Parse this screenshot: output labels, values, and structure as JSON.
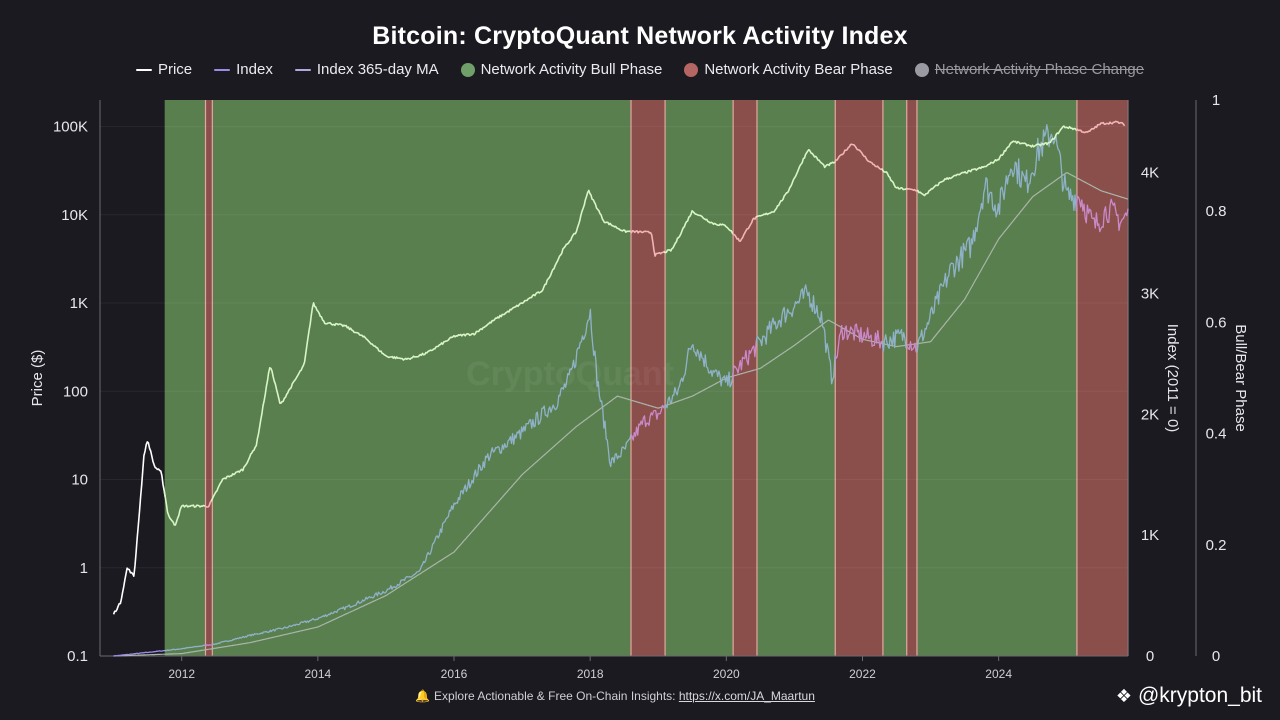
{
  "title": "Bitcoin: CryptoQuant Network Activity Index",
  "legend": [
    {
      "label": "Price",
      "kind": "line",
      "color": "#ffffff",
      "disabled": false
    },
    {
      "label": "Index",
      "kind": "line",
      "color": "#9b8ce8",
      "disabled": false
    },
    {
      "label": "Index 365-day MA",
      "kind": "line",
      "color": "#b4a6e0",
      "disabled": false
    },
    {
      "label": "Network Activity Bull Phase",
      "kind": "dot",
      "color": "#6fa06a",
      "disabled": false
    },
    {
      "label": "Network Activity Bear Phase",
      "kind": "dot",
      "color": "#b56562",
      "disabled": false
    },
    {
      "label": "Network Activity Phase Change",
      "kind": "dot",
      "color": "#9a9aa2",
      "disabled": true
    }
  ],
  "footer": {
    "icon": "bell-icon",
    "text": "Explore Actionable & Free On-Chain Insights: ",
    "link": "https://x.com/JA_Maartun"
  },
  "watermark": {
    "icon": "binance-logo-icon",
    "handle": "@krypton_bit"
  },
  "colors": {
    "background": "#1b1a20",
    "bull": "#5a7f4f",
    "bear": "#8a4e4b",
    "bear_edge": "#e6a5a0",
    "index_bull": "#8fb2c9",
    "index_bear": "#c98ac9",
    "price_bull": "#d8f5c4",
    "price_bear": "#f2b4b4",
    "ma": "#a9b6aa"
  },
  "chart_data": {
    "type": "line",
    "x_ticks": [
      "2012",
      "2014",
      "2016",
      "2018",
      "2020",
      "2022",
      "2024"
    ],
    "x_range": [
      2010.8,
      2025.9
    ],
    "phase_data_start": 2011.75,
    "left_axis": {
      "label": "Price ($)",
      "scale": "log",
      "ticks": [
        "0.1",
        "1",
        "10",
        "100",
        "1K",
        "10K",
        "100K"
      ],
      "range": [
        0.1,
        200000
      ]
    },
    "right_axis_1": {
      "label": "Index (2011 = 0)",
      "ticks": [
        "0",
        "1K",
        "2K",
        "3K",
        "4K"
      ],
      "range": [
        0,
        4600
      ]
    },
    "right_axis_2": {
      "label": "Bull/Bear Phase",
      "ticks": [
        "0",
        "0.2",
        "0.4",
        "0.6",
        "0.8",
        "1"
      ],
      "range": [
        0,
        1
      ]
    },
    "bear_phases": [
      [
        2012.35,
        2012.45
      ],
      [
        2018.6,
        2019.1
      ],
      [
        2020.1,
        2020.45
      ],
      [
        2021.6,
        2022.3
      ],
      [
        2022.65,
        2022.8
      ],
      [
        2025.15,
        2025.9
      ]
    ],
    "series": [
      {
        "name": "Price",
        "points": [
          [
            2011.0,
            0.3
          ],
          [
            2011.1,
            0.4
          ],
          [
            2011.2,
            1.0
          ],
          [
            2011.3,
            0.8
          ],
          [
            2011.45,
            20
          ],
          [
            2011.5,
            28
          ],
          [
            2011.6,
            14
          ],
          [
            2011.7,
            12
          ],
          [
            2011.8,
            4
          ],
          [
            2011.9,
            3
          ],
          [
            2012.0,
            5
          ],
          [
            2012.2,
            5
          ],
          [
            2012.4,
            5
          ],
          [
            2012.6,
            10
          ],
          [
            2012.9,
            13
          ],
          [
            2013.1,
            25
          ],
          [
            2013.3,
            200
          ],
          [
            2013.45,
            70
          ],
          [
            2013.6,
            110
          ],
          [
            2013.8,
            200
          ],
          [
            2013.93,
            1000
          ],
          [
            2014.1,
            600
          ],
          [
            2014.4,
            550
          ],
          [
            2014.7,
            400
          ],
          [
            2015.0,
            250
          ],
          [
            2015.3,
            230
          ],
          [
            2015.6,
            270
          ],
          [
            2016.0,
            420
          ],
          [
            2016.3,
            450
          ],
          [
            2016.6,
            650
          ],
          [
            2017.0,
            1000
          ],
          [
            2017.3,
            1400
          ],
          [
            2017.6,
            4000
          ],
          [
            2017.8,
            6500
          ],
          [
            2017.97,
            19000
          ],
          [
            2018.2,
            8500
          ],
          [
            2018.5,
            6500
          ],
          [
            2018.9,
            6300
          ],
          [
            2018.95,
            3500
          ],
          [
            2019.2,
            4000
          ],
          [
            2019.5,
            11000
          ],
          [
            2019.8,
            8000
          ],
          [
            2020.0,
            7500
          ],
          [
            2020.2,
            5000
          ],
          [
            2020.4,
            9000
          ],
          [
            2020.7,
            11000
          ],
          [
            2020.9,
            18000
          ],
          [
            2021.2,
            55000
          ],
          [
            2021.45,
            35000
          ],
          [
            2021.6,
            40000
          ],
          [
            2021.85,
            65000
          ],
          [
            2022.1,
            40000
          ],
          [
            2022.35,
            30000
          ],
          [
            2022.5,
            20000
          ],
          [
            2022.8,
            19000
          ],
          [
            2022.9,
            16500
          ],
          [
            2023.2,
            25000
          ],
          [
            2023.5,
            30000
          ],
          [
            2023.8,
            35000
          ],
          [
            2024.0,
            43000
          ],
          [
            2024.2,
            68000
          ],
          [
            2024.5,
            60000
          ],
          [
            2024.75,
            65000
          ],
          [
            2024.95,
            100000
          ],
          [
            2025.1,
            95000
          ],
          [
            2025.3,
            85000
          ],
          [
            2025.5,
            108000
          ],
          [
            2025.75,
            112000
          ],
          [
            2025.85,
            105000
          ]
        ]
      },
      {
        "name": "Index",
        "points": [
          [
            2011.0,
            0
          ],
          [
            2011.5,
            30
          ],
          [
            2012.0,
            60
          ],
          [
            2012.5,
            100
          ],
          [
            2013.0,
            170
          ],
          [
            2013.5,
            230
          ],
          [
            2014.0,
            310
          ],
          [
            2014.5,
            420
          ],
          [
            2015.0,
            540
          ],
          [
            2015.5,
            700
          ],
          [
            2016.0,
            1250
          ],
          [
            2016.5,
            1650
          ],
          [
            2017.0,
            1850
          ],
          [
            2017.5,
            2100
          ],
          [
            2017.7,
            2300
          ],
          [
            2018.0,
            2860
          ],
          [
            2018.1,
            2300
          ],
          [
            2018.3,
            1600
          ],
          [
            2018.5,
            1700
          ],
          [
            2018.8,
            1950
          ],
          [
            2019.0,
            2000
          ],
          [
            2019.3,
            2200
          ],
          [
            2019.5,
            2600
          ],
          [
            2019.8,
            2350
          ],
          [
            2020.0,
            2250
          ],
          [
            2020.2,
            2400
          ],
          [
            2020.5,
            2600
          ],
          [
            2020.8,
            2800
          ],
          [
            2021.0,
            2900
          ],
          [
            2021.2,
            3000
          ],
          [
            2021.4,
            2800
          ],
          [
            2021.55,
            2300
          ],
          [
            2021.7,
            2700
          ],
          [
            2022.0,
            2650
          ],
          [
            2022.3,
            2600
          ],
          [
            2022.6,
            2650
          ],
          [
            2022.8,
            2550
          ],
          [
            2023.0,
            2800
          ],
          [
            2023.3,
            3200
          ],
          [
            2023.6,
            3400
          ],
          [
            2023.8,
            3900
          ],
          [
            2024.0,
            3700
          ],
          [
            2024.2,
            4100
          ],
          [
            2024.4,
            3900
          ],
          [
            2024.6,
            4200
          ],
          [
            2024.8,
            4350
          ],
          [
            2025.0,
            3800
          ],
          [
            2025.2,
            3800
          ],
          [
            2025.4,
            3550
          ],
          [
            2025.6,
            3700
          ],
          [
            2025.8,
            3600
          ],
          [
            2025.9,
            3650
          ]
        ]
      },
      {
        "name": "Index 365-day MA",
        "points": [
          [
            2011.0,
            0
          ],
          [
            2012.0,
            20
          ],
          [
            2013.0,
            110
          ],
          [
            2014.0,
            240
          ],
          [
            2015.0,
            500
          ],
          [
            2016.0,
            860
          ],
          [
            2017.0,
            1500
          ],
          [
            2017.8,
            1900
          ],
          [
            2018.4,
            2150
          ],
          [
            2019.0,
            2050
          ],
          [
            2019.5,
            2150
          ],
          [
            2020.0,
            2300
          ],
          [
            2020.5,
            2380
          ],
          [
            2021.0,
            2570
          ],
          [
            2021.5,
            2780
          ],
          [
            2022.0,
            2620
          ],
          [
            2022.5,
            2560
          ],
          [
            2023.0,
            2600
          ],
          [
            2023.5,
            2950
          ],
          [
            2024.0,
            3450
          ],
          [
            2024.5,
            3800
          ],
          [
            2025.0,
            4000
          ],
          [
            2025.5,
            3850
          ],
          [
            2025.9,
            3780
          ]
        ]
      }
    ]
  }
}
